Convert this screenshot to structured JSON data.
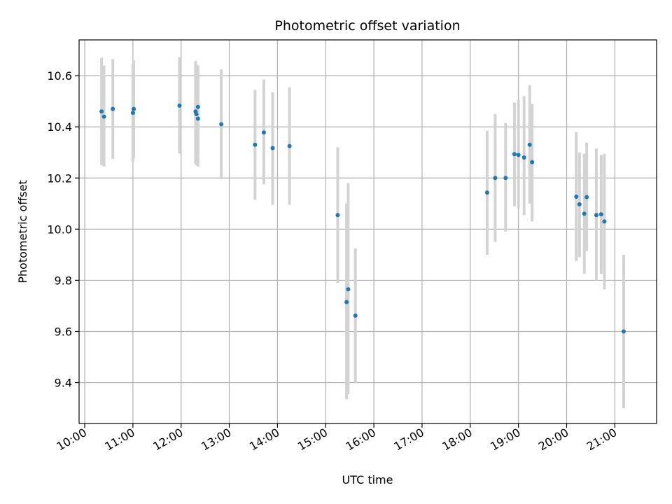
{
  "chart_data": {
    "type": "scatter",
    "title": "Photometric offset variation",
    "xlabel": "UTC time",
    "ylabel": "Photometric offset",
    "x_axis_type": "time",
    "xlim": [
      "09:53",
      "21:52"
    ],
    "ylim": [
      9.24,
      10.74
    ],
    "x_ticks": [
      "10:00",
      "11:00",
      "12:00",
      "13:00",
      "14:00",
      "15:00",
      "16:00",
      "17:00",
      "18:00",
      "19:00",
      "20:00",
      "21:00"
    ],
    "y_ticks": [
      "9.4",
      "9.6",
      "9.8",
      "10.0",
      "10.2",
      "10.4",
      "10.6"
    ],
    "grid": true,
    "legend": "none",
    "colors": {
      "marker": "#1f77b4",
      "errorbar": "#d3d3d3",
      "grid": "#b0b0b0"
    },
    "points": [
      {
        "t": "10:21",
        "y": 10.46,
        "lo": 10.25,
        "hi": 10.67
      },
      {
        "t": "10:24",
        "y": 10.44,
        "lo": 10.245,
        "hi": 10.64
      },
      {
        "t": "10:35",
        "y": 10.47,
        "lo": 10.275,
        "hi": 10.665
      },
      {
        "t": "11:00",
        "y": 10.455,
        "lo": 10.265,
        "hi": 10.645
      },
      {
        "t": "11:01",
        "y": 10.47,
        "lo": 10.28,
        "hi": 10.66
      },
      {
        "t": "11:58",
        "y": 10.483,
        "lo": 10.295,
        "hi": 10.673
      },
      {
        "t": "12:18",
        "y": 10.46,
        "lo": 10.255,
        "hi": 10.658
      },
      {
        "t": "12:19",
        "y": 10.45,
        "lo": 10.25,
        "hi": 10.645
      },
      {
        "t": "12:21",
        "y": 10.478,
        "lo": 10.295,
        "hi": 10.64
      },
      {
        "t": "12:21",
        "y": 10.432,
        "lo": 10.245,
        "hi": 10.632
      },
      {
        "t": "12:50",
        "y": 10.41,
        "lo": 10.195,
        "hi": 10.625
      },
      {
        "t": "13:32",
        "y": 10.33,
        "lo": 10.115,
        "hi": 10.545
      },
      {
        "t": "13:43",
        "y": 10.378,
        "lo": 10.175,
        "hi": 10.585
      },
      {
        "t": "13:54",
        "y": 10.317,
        "lo": 10.095,
        "hi": 10.535
      },
      {
        "t": "14:15",
        "y": 10.325,
        "lo": 10.095,
        "hi": 10.555
      },
      {
        "t": "15:15",
        "y": 10.055,
        "lo": 9.79,
        "hi": 10.32
      },
      {
        "t": "15:26",
        "y": 9.715,
        "lo": 9.335,
        "hi": 10.1
      },
      {
        "t": "15:28",
        "y": 9.765,
        "lo": 9.355,
        "hi": 10.18
      },
      {
        "t": "15:37",
        "y": 9.662,
        "lo": 9.4,
        "hi": 9.925
      },
      {
        "t": "18:21",
        "y": 10.143,
        "lo": 9.9,
        "hi": 10.385
      },
      {
        "t": "18:31",
        "y": 10.2,
        "lo": 9.95,
        "hi": 10.45
      },
      {
        "t": "18:44",
        "y": 10.2,
        "lo": 9.99,
        "hi": 10.415
      },
      {
        "t": "18:55",
        "y": 10.293,
        "lo": 10.09,
        "hi": 10.495
      },
      {
        "t": "19:00",
        "y": 10.29,
        "lo": 10.08,
        "hi": 10.505
      },
      {
        "t": "19:07",
        "y": 10.28,
        "lo": 10.055,
        "hi": 10.52
      },
      {
        "t": "19:14",
        "y": 10.33,
        "lo": 10.1,
        "hi": 10.563
      },
      {
        "t": "19:17",
        "y": 10.262,
        "lo": 10.03,
        "hi": 10.49
      },
      {
        "t": "20:12",
        "y": 10.127,
        "lo": 9.875,
        "hi": 10.38
      },
      {
        "t": "20:16",
        "y": 10.097,
        "lo": 9.89,
        "hi": 10.3
      },
      {
        "t": "20:22",
        "y": 10.06,
        "lo": 9.825,
        "hi": 10.295
      },
      {
        "t": "20:25",
        "y": 10.125,
        "lo": 9.915,
        "hi": 10.338
      },
      {
        "t": "20:37",
        "y": 10.055,
        "lo": 9.8,
        "hi": 10.315
      },
      {
        "t": "20:43",
        "y": 10.058,
        "lo": 9.825,
        "hi": 10.29
      },
      {
        "t": "20:47",
        "y": 10.03,
        "lo": 9.765,
        "hi": 10.295
      },
      {
        "t": "21:11",
        "y": 9.6,
        "lo": 9.3,
        "hi": 9.9
      }
    ]
  }
}
